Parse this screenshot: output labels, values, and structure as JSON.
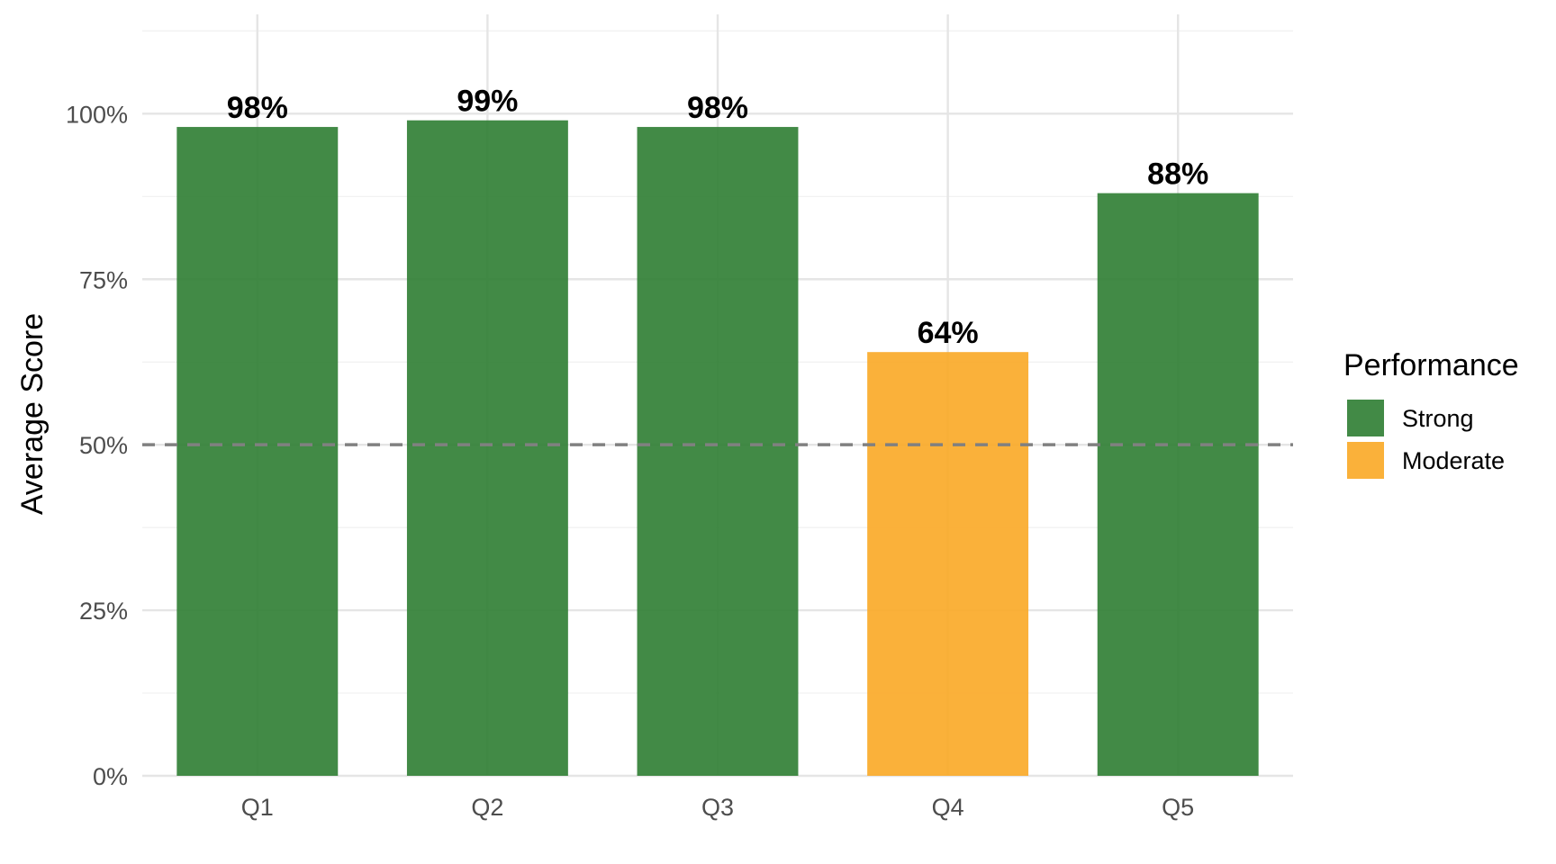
{
  "chart_data": {
    "type": "bar",
    "title": "",
    "xlabel": "",
    "ylabel": "Average Score",
    "categories": [
      "Q1",
      "Q2",
      "Q3",
      "Q4",
      "Q5"
    ],
    "values": [
      98,
      99,
      98,
      64,
      88
    ],
    "value_labels": [
      "98%",
      "99%",
      "98%",
      "64%",
      "88%"
    ],
    "performance": [
      "Strong",
      "Strong",
      "Strong",
      "Moderate",
      "Strong"
    ],
    "ylim": [
      0,
      115
    ],
    "y_ticks": [
      0,
      25,
      50,
      75,
      100
    ],
    "y_tick_labels": [
      "0%",
      "25%",
      "50%",
      "75%",
      "100%"
    ],
    "reference_line": 50,
    "grid": true,
    "legend": {
      "title": "Performance",
      "position": "right",
      "items": [
        {
          "label": "Strong",
          "color": "#2e7d32"
        },
        {
          "label": "Moderate",
          "color": "#f9a825"
        }
      ]
    },
    "colors": {
      "Strong": "#2e7d32",
      "Moderate": "#f9a825",
      "reference_line": "#808080"
    }
  }
}
